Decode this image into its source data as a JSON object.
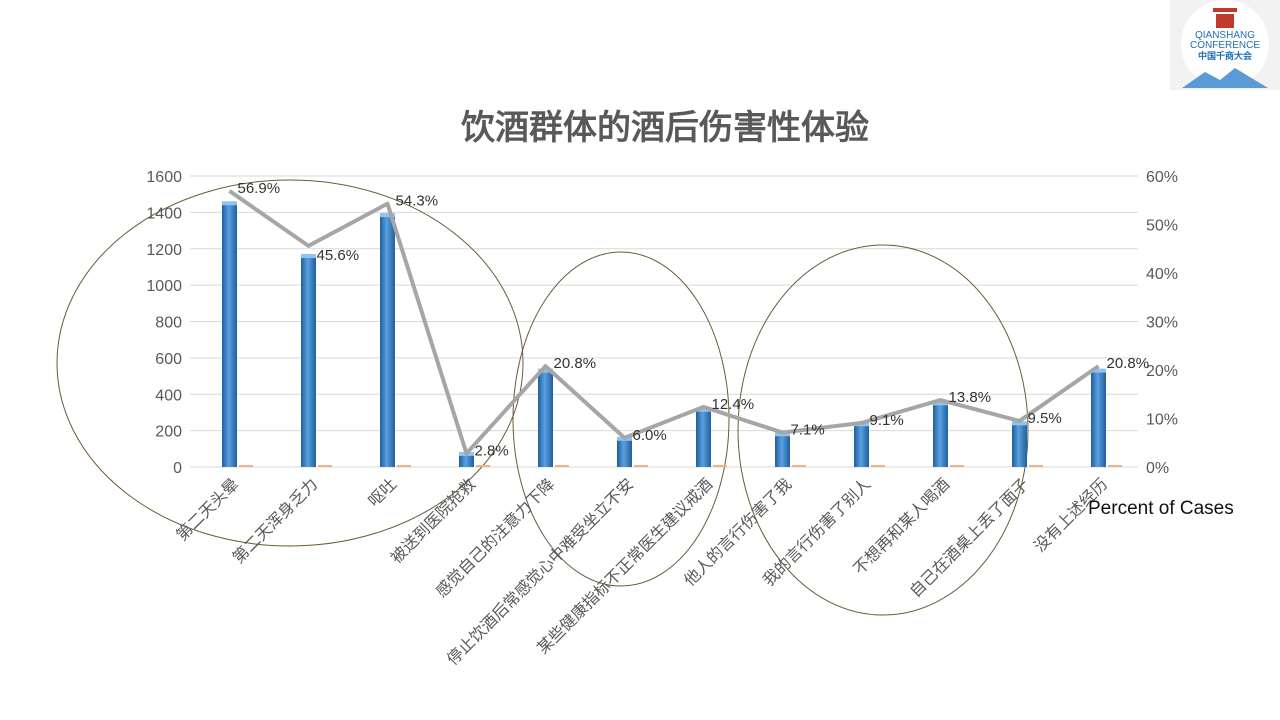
{
  "slide": {
    "logo": {
      "line1": "QIANSHANG",
      "line2": "CONFERENCE",
      "line3": "中国千商大会"
    }
  },
  "chart_data": {
    "type": "bar",
    "title": "饮酒群体的酒后伤害性体验",
    "categories": [
      "第二天头晕",
      "第二天浑身乏力",
      "呕吐",
      "被送到医院抢救",
      "感觉自己的注意力下降",
      "停止饮酒后常感觉心中难受坐立不安",
      "某些健康指标不正常医生建议戒酒",
      "他人的言行伤害了我",
      "我的言行伤害了别人",
      "不想再和某人喝酒",
      "自己在酒桌上丢了面子",
      "没有上述经历"
    ],
    "y_ticks": [
      "0",
      "200",
      "400",
      "600",
      "800",
      "1000",
      "1200",
      "1400",
      "1600"
    ],
    "y2_ticks": [
      "0%",
      "10%",
      "20%",
      "30%",
      "40%",
      "50%",
      "60%"
    ],
    "ylim": [
      0,
      1600
    ],
    "y2lim": [
      0,
      60
    ],
    "series": [
      {
        "type": "bar",
        "color": "#2e75b6",
        "values": [
          1450,
          1160,
          1385,
          72,
          530,
          155,
          315,
          180,
          235,
          350,
          240,
          530
        ]
      },
      {
        "type": "line",
        "color": "#a6a6a6",
        "name": "Percent of Cases",
        "values": [
          56.9,
          45.6,
          54.3,
          2.8,
          20.8,
          6.0,
          12.4,
          7.1,
          9.1,
          13.8,
          9.5,
          20.8
        ],
        "labels": [
          "56.9%",
          "45.6%",
          "54.3%",
          "2.8%",
          "20.8%",
          "6.0%",
          "12.4%",
          "7.1%",
          "9.1%",
          "13.8%",
          "9.5%",
          "20.8%"
        ]
      }
    ],
    "grid": true,
    "annotations": "circles grouping bars 1-4, 5-7, 8-11",
    "legend": "bottom-right"
  }
}
